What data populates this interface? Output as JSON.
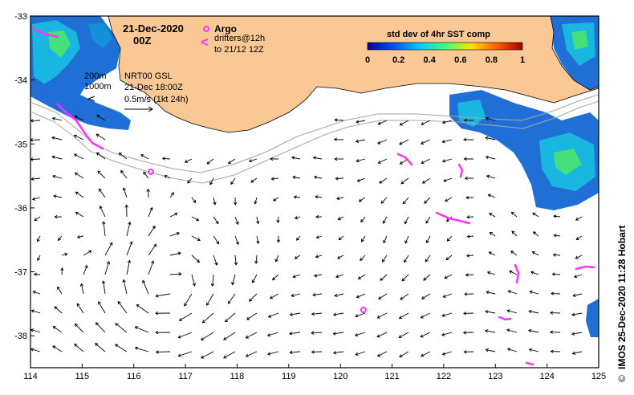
{
  "map": {
    "title_date": "21-Dec-2020",
    "title_time": "00Z",
    "product": "NRT00 GSL",
    "analysis_time": "21-Dec 18:00Z",
    "scale_label": "0.5m/s (1kt 24h)",
    "contour_labels": [
      "200m",
      "1000m"
    ],
    "colors": {
      "land": "#f9c894",
      "ocean": "#ffffff",
      "coast_line": "#000000",
      "isobath": "#a6a6a6",
      "drifter": "#ff33ff",
      "current_arrows": "#000000"
    }
  },
  "legend": {
    "argo_label": "Argo",
    "drifters_label": "drifters@12h",
    "drifters_sub": "to 21/12 12Z",
    "colorbar_title": "std dev of 4hr SST comp",
    "colorbar_ticks": [
      "0",
      "0.2",
      "0.4",
      "0.6",
      "0.8",
      "1"
    ],
    "colorbar_range": [
      0,
      1
    ],
    "colormap_stops": [
      "#000090",
      "#0050ff",
      "#00c8ff",
      "#40ff80",
      "#ffe000",
      "#ff6000",
      "#a00000"
    ]
  },
  "axes": {
    "x_ticks": [
      "114",
      "115",
      "116",
      "117",
      "118",
      "119",
      "120",
      "121",
      "122",
      "123",
      "124",
      "125"
    ],
    "y_ticks": [
      "-33",
      "-34",
      "-35",
      "-36",
      "-37",
      "-38"
    ],
    "lon_range": [
      114,
      125
    ],
    "lat_range": [
      -38.5,
      -33
    ]
  },
  "credit": "IMOS 25-Dec-2020 11:28 Hobart",
  "copyright_symbol": "©"
}
